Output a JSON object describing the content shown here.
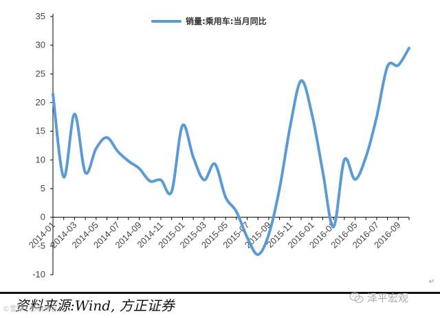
{
  "chart_data": {
    "type": "line",
    "series": [
      {
        "name": "销量:乘用车:当月同比",
        "color": "#5b9bd5",
        "points": [
          [
            "2014-01",
            21.5
          ],
          [
            "2014-02",
            7.0
          ],
          [
            "2014-03",
            18.0
          ],
          [
            "2014-04",
            7.8
          ],
          [
            "2014-05",
            12.0
          ],
          [
            "2014-06",
            13.9
          ],
          [
            "2014-07",
            11.5
          ],
          [
            "2014-08",
            9.8
          ],
          [
            "2014-09",
            8.5
          ],
          [
            "2014-10",
            6.3
          ],
          [
            "2014-11",
            6.5
          ],
          [
            "2014-12",
            4.5
          ],
          [
            "2015-01",
            16.0
          ],
          [
            "2015-02",
            10.5
          ],
          [
            "2015-03",
            6.5
          ],
          [
            "2015-04",
            9.3
          ],
          [
            "2015-05",
            3.5
          ],
          [
            "2015-06",
            1.0
          ],
          [
            "2015-07",
            -3.5
          ],
          [
            "2015-08",
            -6.5
          ],
          [
            "2015-09",
            -3.0
          ],
          [
            "2015-10",
            5.0
          ],
          [
            "2015-11",
            16.0
          ],
          [
            "2015-12",
            23.8
          ],
          [
            "2016-01",
            18.0
          ],
          [
            "2016-02",
            8.0
          ],
          [
            "2016-03",
            -1.7
          ],
          [
            "2016-04",
            10.0
          ],
          [
            "2016-05",
            6.6
          ],
          [
            "2016-06",
            10.5
          ],
          [
            "2016-07",
            17.5
          ],
          [
            "2016-08",
            26.3
          ],
          [
            "2016-09",
            26.5
          ],
          [
            "2016-10",
            29.5
          ]
        ]
      }
    ],
    "x_tick_labels": [
      "2014-01",
      "2014-03",
      "2014-05",
      "2014-07",
      "2014-09",
      "2014-11",
      "2015-01",
      "2015-03",
      "2015-05",
      "2015-07",
      "2015-09",
      "2015-11",
      "2016-01",
      "2016-03",
      "2016-05",
      "2016-07",
      "2016-09"
    ],
    "y_ticks": [
      -10,
      -5,
      0,
      5,
      10,
      15,
      20,
      25,
      30,
      35
    ],
    "ylim": [
      -10,
      35
    ],
    "grid": false,
    "legend_position": "top-center"
  },
  "footer": {
    "source": "资料来源:Wind, 方正证券",
    "watermark_left": "©雪球 | 新浪博客",
    "watermark_right": "泽平宏观",
    "return_mark": "↵",
    "wechat_icon": "wechat-icon"
  }
}
